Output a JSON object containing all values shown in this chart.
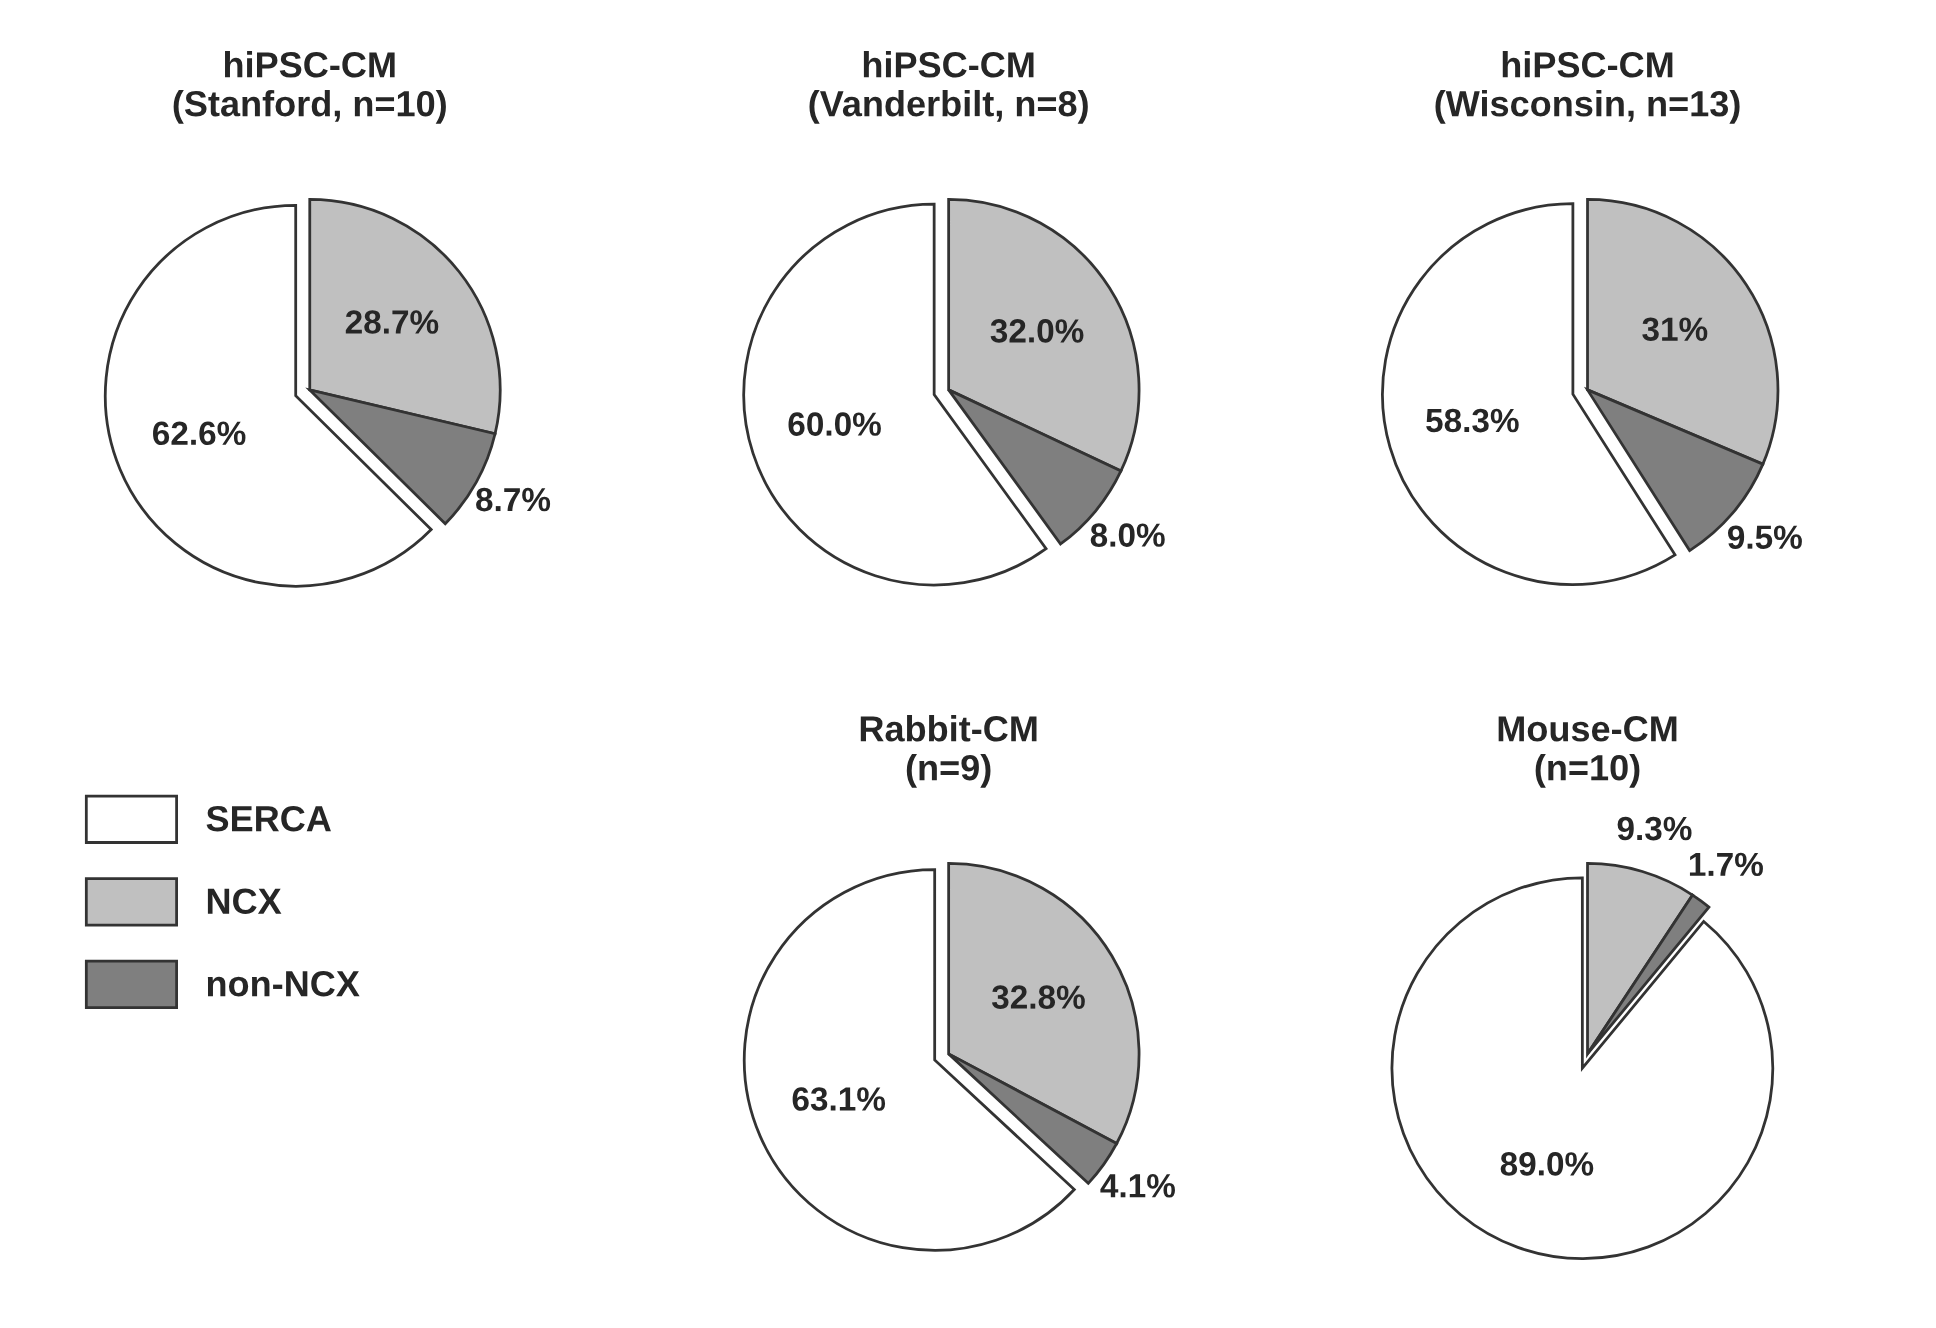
{
  "chart_data": [
    {
      "type": "pie",
      "title": "hiPSC-CM\n(Stanford, n=10)",
      "categories": [
        "SERCA",
        "NCX",
        "non-NCX"
      ],
      "values": [
        62.6,
        28.7,
        8.7
      ],
      "value_labels": [
        "62.6%",
        "28.7%",
        "8.7%"
      ],
      "colors": [
        "#ffffff",
        "#c0c0c0",
        "#7f7f7f"
      ],
      "legend": "bottom left"
    },
    {
      "type": "pie",
      "title": "hiPSC-CM\n(Vanderbilt, n=8)",
      "categories": [
        null,
        null,
        null
      ],
      "values": [
        60.0,
        32.0,
        8.0
      ],
      "value_labels": [
        "60.0%",
        "32.0%",
        "8.0%"
      ],
      "colors": [
        "#ffffff",
        "#c0c0c0",
        "#7f7f7f"
      ]
    },
    {
      "type": "pie",
      "title": "hiPSC-CM\n(Wisconsin, n=13)",
      "categories": [
        null,
        null,
        null
      ],
      "values": [
        58.3,
        31,
        9.5
      ],
      "value_labels": [
        "58.3%",
        "31%",
        "9.5%"
      ],
      "colors": [
        "#ffffff",
        "#c0c0c0",
        "#7f7f7f"
      ]
    },
    {
      "type": "pie",
      "title": "Rabbit-CM\n(n=9)",
      "categories": [
        null,
        null,
        null
      ],
      "values": [
        63.1,
        32.8,
        4.1
      ],
      "value_labels": [
        "63.1%",
        "32.8%",
        "4.1%"
      ],
      "colors": [
        "#ffffff",
        "#c0c0c0",
        "#7f7f7f"
      ]
    },
    {
      "type": "pie",
      "title": "Mouse-CM\n(n=10)",
      "categories": [
        null,
        null,
        null
      ],
      "values": [
        89.0,
        9.3,
        1.7
      ],
      "value_labels": [
        "89.0%",
        "9.3%",
        "1.7%"
      ],
      "colors": [
        "#ffffff",
        "#c0c0c0",
        "#7f7f7f"
      ]
    }
  ]
}
